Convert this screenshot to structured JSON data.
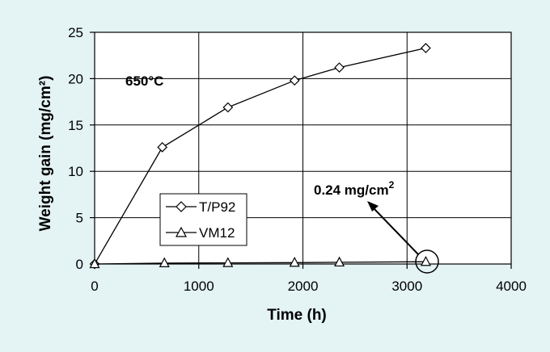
{
  "chart_data": {
    "type": "line",
    "xlabel": "Time (h)",
    "ylabel": "Weight gain (mg/cm²)",
    "xlim": [
      0,
      4000
    ],
    "ylim": [
      0,
      25
    ],
    "xticks": [
      "0",
      "1000",
      "2000",
      "3000",
      "4000"
    ],
    "yticks": [
      "0",
      "5",
      "10",
      "15",
      "20",
      "25"
    ],
    "grid": true,
    "legend_position": "center-left",
    "series": [
      {
        "name": "T/P92",
        "marker": "diamond",
        "x": [
          0,
          650,
          1280,
          1920,
          2350,
          3180
        ],
        "y": [
          0,
          12.6,
          16.9,
          19.8,
          21.2,
          23.3
        ]
      },
      {
        "name": "VM12",
        "marker": "triangle",
        "x": [
          0,
          670,
          1280,
          1920,
          2350,
          3180
        ],
        "y": [
          0,
          0.1,
          0.12,
          0.15,
          0.18,
          0.24
        ]
      }
    ],
    "annotations": [
      {
        "text": "650°C"
      },
      {
        "text": "0.24 mg/cm",
        "superscript": "2"
      }
    ],
    "colors": {
      "background": "#e4f3f4",
      "plot_area": "#ffffff",
      "ink": "#000000"
    }
  }
}
